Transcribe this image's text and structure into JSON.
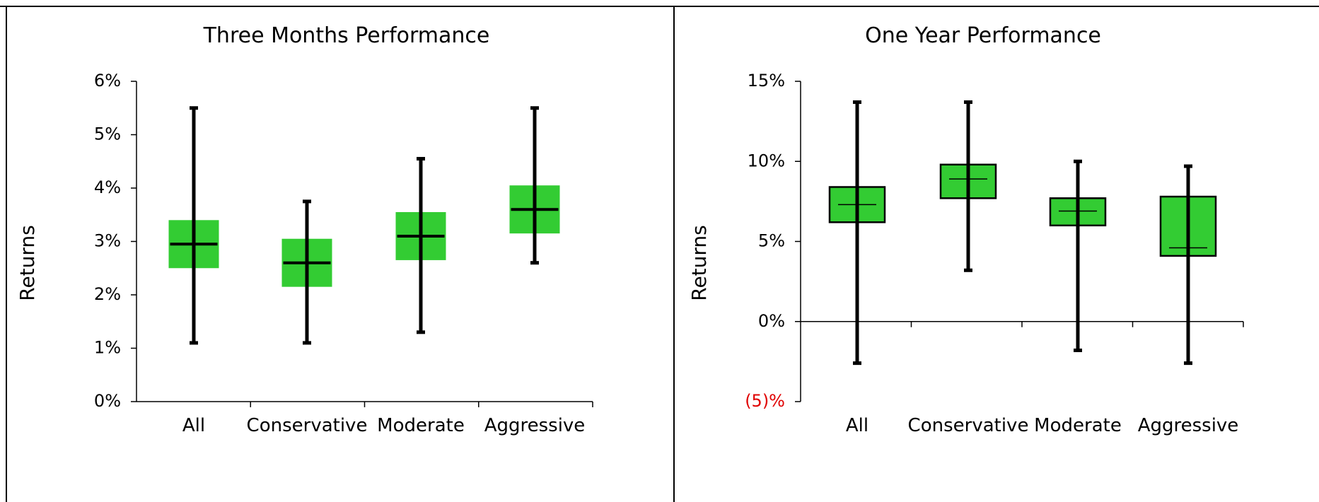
{
  "colors": {
    "box_fill": "#33cc33",
    "box_stroke": "#000000",
    "negative_tick": "#e00000",
    "axis": "#000000"
  },
  "chart_data": [
    {
      "type": "boxplot",
      "title": "Three Months Performance",
      "ylabel": "Returns",
      "categories": [
        "All",
        "Conservative",
        "Moderate",
        "Aggressive"
      ],
      "ylim": [
        0,
        6
      ],
      "yticks": [
        0,
        1,
        2,
        3,
        4,
        5,
        6
      ],
      "ytick_labels": [
        "0%",
        "1%",
        "2%",
        "3%",
        "4%",
        "5%",
        "6%"
      ],
      "box_outline": false,
      "box_style": "thick-median",
      "data": [
        {
          "min": 1.1,
          "q1": 2.5,
          "median": 2.95,
          "q3": 3.4,
          "max": 5.5
        },
        {
          "min": 1.1,
          "q1": 2.15,
          "median": 2.6,
          "q3": 3.05,
          "max": 3.75
        },
        {
          "min": 1.3,
          "q1": 2.65,
          "median": 3.1,
          "q3": 3.55,
          "max": 4.55
        },
        {
          "min": 2.6,
          "q1": 3.15,
          "median": 3.6,
          "q3": 4.05,
          "max": 5.5
        }
      ],
      "grid": false
    },
    {
      "type": "boxplot",
      "title": "One Year Performance",
      "ylabel": "Returns",
      "categories": [
        "All",
        "Conservative",
        "Moderate",
        "Aggressive"
      ],
      "ylim": [
        -5,
        15
      ],
      "yticks": [
        -5,
        0,
        5,
        10,
        15
      ],
      "ytick_labels": [
        "(5)%",
        "0%",
        "5%",
        "10%",
        "15%"
      ],
      "box_outline": true,
      "box_style": "thin-median",
      "data": [
        {
          "min": -2.6,
          "q1": 6.2,
          "median": 7.3,
          "q3": 8.4,
          "max": 13.7
        },
        {
          "min": 3.2,
          "q1": 7.7,
          "median": 8.9,
          "q3": 9.8,
          "max": 13.7
        },
        {
          "min": -1.8,
          "q1": 6.0,
          "median": 6.9,
          "q3": 7.7,
          "max": 10.0
        },
        {
          "min": -2.6,
          "q1": 4.1,
          "median": 4.6,
          "q3": 7.8,
          "max": 9.7
        }
      ],
      "grid": false
    }
  ]
}
